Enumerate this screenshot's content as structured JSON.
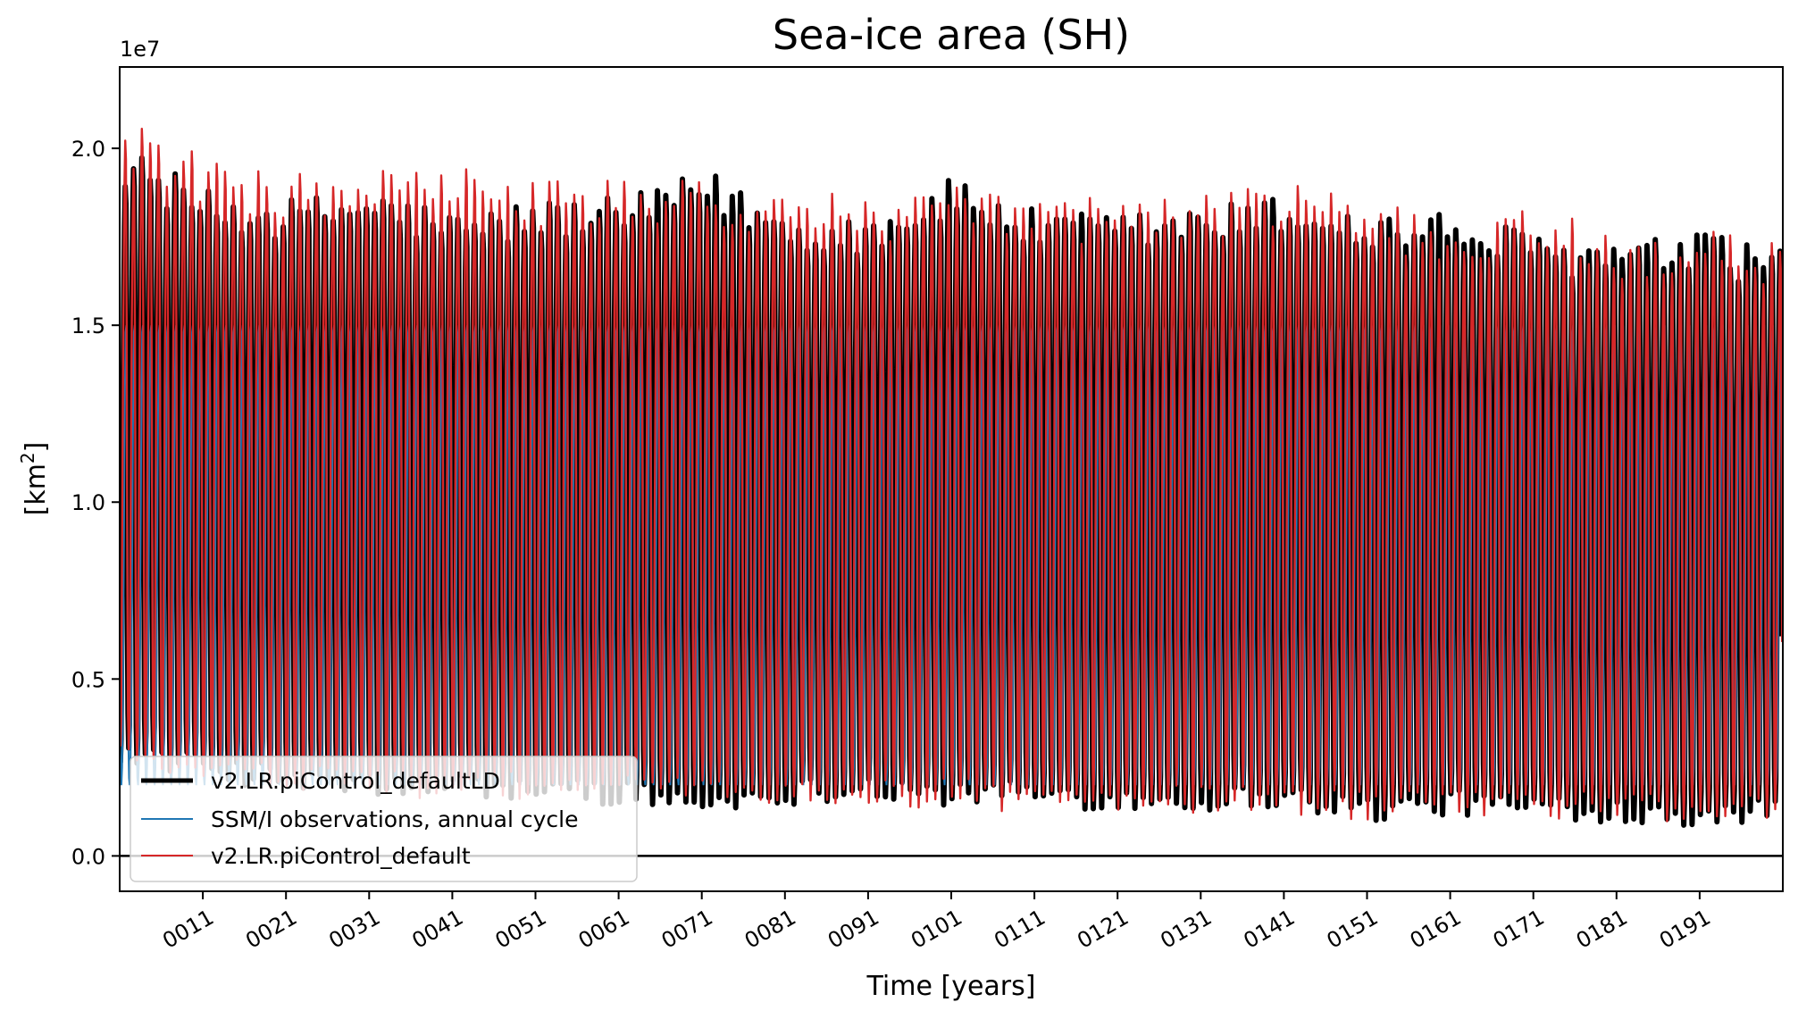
{
  "chart_data": {
    "type": "line",
    "title": "Sea-ice area (SH)",
    "xlabel": "Time [years]",
    "ylabel_main": "[km",
    "ylabel_sup": "2",
    "ylabel_close": "]",
    "y_offset_text": "1e7",
    "xlim": [
      1,
      201
    ],
    "ylim": [
      -0.1,
      2.23
    ],
    "y_ticks": [
      {
        "value": 0.0,
        "label": "0.0"
      },
      {
        "value": 0.5,
        "label": "0.5"
      },
      {
        "value": 1.0,
        "label": "1.0"
      },
      {
        "value": 1.5,
        "label": "1.5"
      },
      {
        "value": 2.0,
        "label": "2.0"
      }
    ],
    "x_ticks": [
      {
        "value": 11,
        "label": "0011"
      },
      {
        "value": 21,
        "label": "0021"
      },
      {
        "value": 31,
        "label": "0031"
      },
      {
        "value": 41,
        "label": "0041"
      },
      {
        "value": 51,
        "label": "0051"
      },
      {
        "value": 61,
        "label": "0061"
      },
      {
        "value": 71,
        "label": "0071"
      },
      {
        "value": 81,
        "label": "0081"
      },
      {
        "value": 91,
        "label": "0091"
      },
      {
        "value": 101,
        "label": "0101"
      },
      {
        "value": 111,
        "label": "0111"
      },
      {
        "value": 121,
        "label": "0121"
      },
      {
        "value": 131,
        "label": "0131"
      },
      {
        "value": 141,
        "label": "0141"
      },
      {
        "value": 151,
        "label": "0151"
      },
      {
        "value": 161,
        "label": "0161"
      },
      {
        "value": 171,
        "label": "0171"
      },
      {
        "value": 181,
        "label": "0181"
      },
      {
        "value": 191,
        "label": "0191"
      }
    ],
    "reference_line": {
      "value": 0.0,
      "color": "#000000"
    },
    "series": [
      {
        "name": "v2.LR.piControl_defaultLD",
        "color": "#000000",
        "decadal_max": [
          1.95,
          1.82,
          1.8,
          1.83,
          1.76,
          1.8,
          1.8,
          1.88,
          1.76,
          1.76,
          1.86,
          1.76,
          1.76,
          1.78,
          1.81,
          1.76,
          1.76,
          1.7,
          1.68,
          1.7,
          1.66
        ],
        "decadal_min": [
          0.3,
          0.25,
          0.22,
          0.2,
          0.2,
          0.19,
          0.18,
          0.15,
          0.18,
          0.2,
          0.17,
          0.18,
          0.16,
          0.16,
          0.17,
          0.13,
          0.15,
          0.14,
          0.13,
          0.12,
          0.14
        ]
      },
      {
        "name": "SSM/I observations, annual cycle",
        "color": "#1f77b4",
        "annual_cycle": [
          0.32,
          0.22,
          0.2,
          0.25,
          0.4,
          0.7,
          1.0,
          1.3,
          1.48,
          1.5,
          1.3,
          0.8
        ],
        "initial_value": 0.65
      },
      {
        "name": "v2.LR.piControl_default",
        "color": "#d62728",
        "decadal_max": [
          2.02,
          1.9,
          1.86,
          1.88,
          1.88,
          1.84,
          1.84,
          1.84,
          1.82,
          1.8,
          1.82,
          1.8,
          1.8,
          1.8,
          1.85,
          1.78,
          1.74,
          1.76,
          1.7,
          1.7,
          1.68
        ],
        "decadal_min": [
          0.3,
          0.24,
          0.22,
          0.21,
          0.2,
          0.2,
          0.2,
          0.18,
          0.18,
          0.17,
          0.18,
          0.16,
          0.17,
          0.16,
          0.15,
          0.14,
          0.15,
          0.14,
          0.14,
          0.13,
          0.14
        ]
      }
    ],
    "legend": {
      "position": "lower-left",
      "entries": [
        "v2.LR.piControl_defaultLD",
        "SSM/I observations, annual cycle",
        "v2.LR.piControl_default"
      ]
    }
  }
}
